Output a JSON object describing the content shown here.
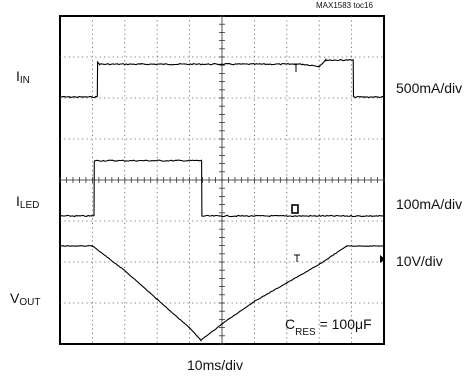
{
  "ref_tag": "MAX1583 toc16",
  "timebase": "10ms/div",
  "annotation": {
    "c_main": "C",
    "c_sub": "RES",
    "c_rest": " = 100μF"
  },
  "channels": [
    {
      "label_main": "I",
      "label_sub": "IN",
      "scale": "500mA/div"
    },
    {
      "label_main": "I",
      "label_sub": "LED",
      "scale": "100mA/div"
    },
    {
      "label_main": "V",
      "label_sub": "OUT",
      "scale": "10V/div"
    }
  ],
  "chart_data": {
    "type": "line",
    "title": "",
    "xlabel": "10ms/div",
    "x_unit": "ms",
    "x_range": [
      0,
      100
    ],
    "grid": {
      "divisions_x": 10,
      "divisions_y": 8,
      "on": true
    },
    "series": [
      {
        "name": "IIN",
        "y_unit": "div",
        "points": [
          [
            0,
            0
          ],
          [
            11.5,
            0
          ],
          [
            11.6,
            0.85
          ],
          [
            12.2,
            0.8
          ],
          [
            25,
            0.8
          ],
          [
            50,
            0.8
          ],
          [
            75,
            0.8
          ],
          [
            80,
            0.75
          ],
          [
            82,
            0.9
          ],
          [
            87,
            0.9
          ],
          [
            90.5,
            0.9
          ],
          [
            90.6,
            0
          ],
          [
            100,
            0
          ]
        ]
      },
      {
        "name": "ILED",
        "y_unit": "div",
        "points": [
          [
            0,
            0
          ],
          [
            10.5,
            0
          ],
          [
            10.6,
            1.35
          ],
          [
            43.7,
            1.35
          ],
          [
            43.8,
            0
          ],
          [
            100,
            0
          ]
        ]
      },
      {
        "name": "VOUT",
        "y_unit": "div",
        "points": [
          [
            0,
            0
          ],
          [
            10,
            0
          ],
          [
            20,
            -0.6
          ],
          [
            30,
            -1.3
          ],
          [
            40,
            -2.0
          ],
          [
            43.5,
            -2.3
          ],
          [
            50,
            -1.9
          ],
          [
            60,
            -1.35
          ],
          [
            70,
            -0.9
          ],
          [
            80,
            -0.45
          ],
          [
            88.5,
            0
          ],
          [
            100,
            0
          ]
        ]
      }
    ]
  }
}
